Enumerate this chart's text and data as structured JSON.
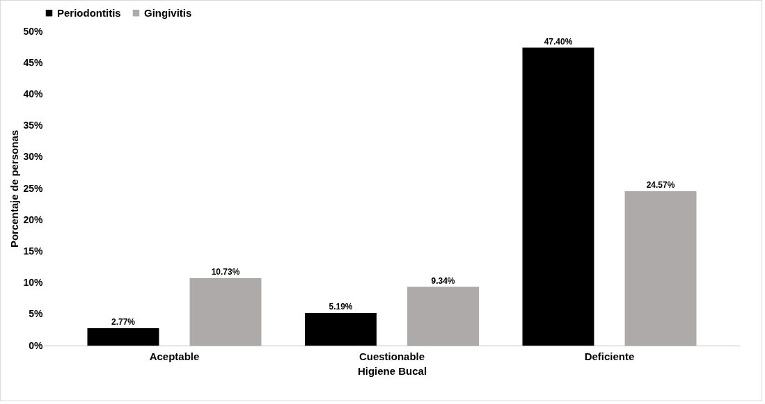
{
  "chart_data": {
    "type": "bar",
    "xlabel": "Higiene Bucal",
    "ylabel": "Porcentaje de personas",
    "categories": [
      "Aceptable",
      "Cuestionable",
      "Deficiente"
    ],
    "series": [
      {
        "name": "Periodontitis",
        "color": "#000000",
        "values": [
          2.77,
          5.19,
          47.4
        ],
        "value_labels": [
          "2.77%",
          "5.19%",
          "47.40%"
        ]
      },
      {
        "name": "Gingivitis",
        "color": "#aeaaaa",
        "values": [
          10.73,
          9.34,
          24.57
        ],
        "value_labels": [
          "10.73%",
          "9.34%",
          "24.57%"
        ]
      }
    ],
    "ylim": [
      0,
      50
    ],
    "yticks": [
      {
        "value": 0,
        "label": "0%"
      },
      {
        "value": 5,
        "label": "5%"
      },
      {
        "value": 10,
        "label": "10%"
      },
      {
        "value": 15,
        "label": "15%"
      },
      {
        "value": 20,
        "label": "20%"
      },
      {
        "value": 25,
        "label": "25%"
      },
      {
        "value": 30,
        "label": "30%"
      },
      {
        "value": 35,
        "label": "35%"
      },
      {
        "value": 40,
        "label": "40%"
      },
      {
        "value": 45,
        "label": "45%"
      },
      {
        "value": 50,
        "label": "50%"
      }
    ],
    "grid": false,
    "legend": "top"
  }
}
